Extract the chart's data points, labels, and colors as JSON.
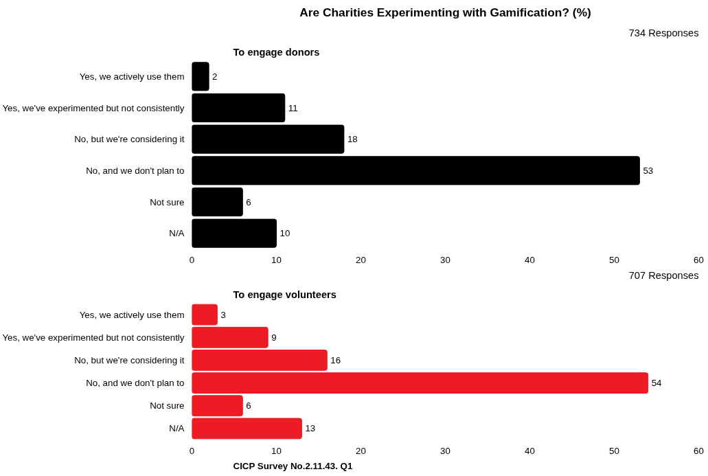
{
  "chart_data": [
    {
      "type": "bar",
      "orientation": "horizontal",
      "title": "Are Charities Experimenting with Gamification? (%)",
      "subtitle": "To engage donors",
      "annotations": [
        "734 Responses"
      ],
      "categories": [
        "Yes, we actively use them",
        "Yes, we've experimented but not consistently",
        "No, but we're considering it",
        "No, and we don't plan to",
        "Not sure",
        "N/A"
      ],
      "values": [
        2,
        11,
        18,
        53,
        6,
        10
      ],
      "color": "#000000",
      "data_labels": true,
      "xlim": [
        0,
        60
      ],
      "xticks": [
        0,
        10,
        20,
        30,
        40,
        50,
        60
      ],
      "grid": false
    },
    {
      "type": "bar",
      "orientation": "horizontal",
      "subtitle": "To engage volunteers",
      "annotations": [
        "707 Responses",
        "CICP Survey No.2.11.43. Q1"
      ],
      "categories": [
        "Yes, we actively use them",
        "Yes, we've experimented but not consistently",
        "No, but we're considering it",
        "No, and we don't plan to",
        "Not sure",
        "N/A"
      ],
      "values": [
        3,
        9,
        16,
        54,
        6,
        13
      ],
      "color": "#ed1c24",
      "data_labels": true,
      "xlim": [
        0,
        60
      ],
      "xticks": [
        0,
        10,
        20,
        30,
        40,
        50,
        60
      ],
      "grid": false
    }
  ]
}
